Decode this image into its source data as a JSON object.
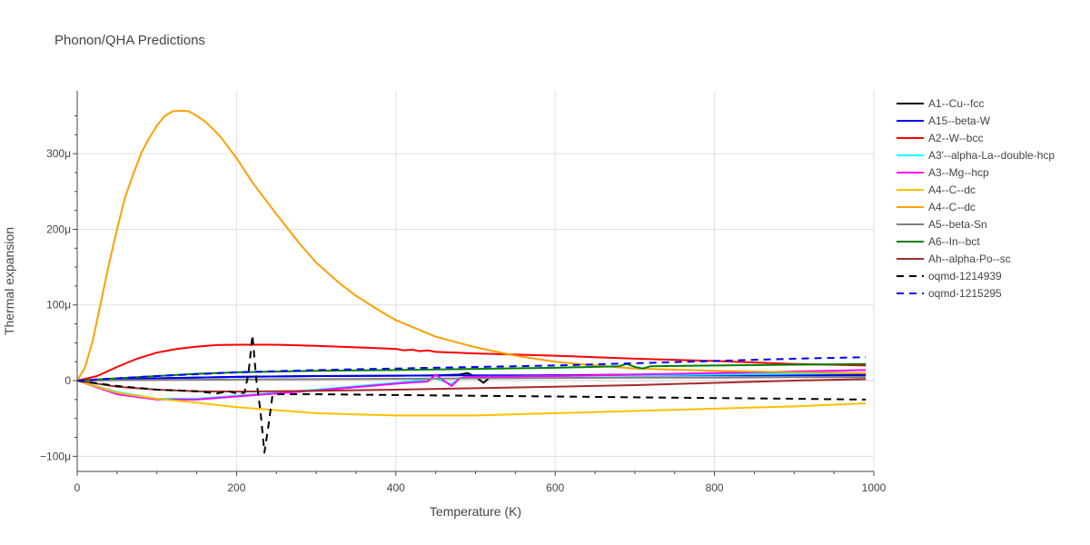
{
  "chart_data": {
    "type": "line",
    "title": "Phonon/QHA Predictions",
    "xlabel": "Temperature (K)",
    "ylabel": "Thermal expansion",
    "xlim": [
      0,
      1000
    ],
    "ylim": [
      -120,
      383
    ],
    "x_ticks": [
      0,
      200,
      400,
      600,
      800,
      1000
    ],
    "x_tick_labels": [
      "0",
      "200",
      "400",
      "600",
      "800",
      "1000"
    ],
    "y_ticks": [
      -100,
      0,
      100,
      200,
      300
    ],
    "y_tick_labels": [
      "−100μ",
      "0",
      "100μ",
      "200μ",
      "300μ"
    ],
    "y_unit": "1e-6 (μ)",
    "grid": true,
    "legend_position": "right",
    "series": [
      {
        "name": "A1--Cu--fcc",
        "color": "#000000",
        "dash": "solid",
        "x": [
          0,
          50,
          100,
          200,
          300,
          400,
          450,
          480,
          490,
          500,
          510,
          520,
          600,
          700,
          800,
          900,
          990
        ],
        "y": [
          0,
          1,
          3,
          5,
          6,
          6.5,
          7,
          8,
          10,
          5,
          -3,
          6,
          7,
          8,
          8.5,
          9,
          9
        ]
      },
      {
        "name": "A15--beta-W",
        "color": "#0000ff",
        "dash": "solid",
        "x": [
          0,
          50,
          100,
          200,
          300,
          400,
          500,
          600,
          700,
          800,
          900,
          990
        ],
        "y": [
          0,
          1.5,
          3,
          5,
          6,
          6.5,
          7,
          7,
          7,
          7,
          7,
          7
        ]
      },
      {
        "name": "A2--W--bcc",
        "color": "#ff0000",
        "dash": "solid",
        "x": [
          0,
          25,
          50,
          75,
          100,
          125,
          150,
          175,
          200,
          250,
          300,
          350,
          400,
          410,
          420,
          430,
          440,
          450,
          500,
          600,
          700,
          800,
          900,
          990
        ],
        "y": [
          0,
          6,
          18,
          29,
          37,
          42,
          45,
          47,
          47.5,
          47.5,
          46,
          44,
          42,
          40,
          41,
          39,
          40,
          38,
          36,
          33,
          29,
          26,
          22,
          20
        ]
      },
      {
        "name": "A3'--alpha-La--double-hcp",
        "color": "#00ffff",
        "dash": "solid",
        "x": [
          0,
          50,
          100,
          150,
          200,
          300,
          400,
          450,
          470,
          480,
          500,
          600,
          700,
          800,
          900,
          990
        ],
        "y": [
          0,
          -15,
          -24,
          -24,
          -20,
          -12,
          -3,
          3,
          -5,
          3,
          5,
          6,
          7,
          8,
          9,
          10
        ]
      },
      {
        "name": "A3--Mg--hcp",
        "color": "#ff00ff",
        "dash": "solid",
        "x": [
          0,
          50,
          100,
          150,
          200,
          300,
          400,
          440,
          450,
          460,
          470,
          480,
          490,
          500,
          600,
          700,
          800,
          900,
          990
        ],
        "y": [
          0,
          -18,
          -25,
          -25,
          -21,
          -13,
          -4,
          -1,
          8,
          0,
          -7,
          3,
          5,
          5,
          6,
          8,
          10,
          12,
          14
        ]
      },
      {
        "name": "A4--C--dc",
        "color": "#ffbf00",
        "dash": "solid",
        "x": [
          0,
          50,
          100,
          150,
          200,
          300,
          400,
          500,
          600,
          700,
          800,
          900,
          990
        ],
        "y": [
          0,
          -16,
          -24,
          -29,
          -35,
          -43,
          -46,
          -46,
          -43,
          -40,
          -37,
          -34,
          -30
        ]
      },
      {
        "name": "A4--C--dc",
        "color": "#ff9f00",
        "dash": "solid",
        "x": [
          0,
          10,
          20,
          30,
          40,
          50,
          60,
          70,
          80,
          90,
          100,
          110,
          120,
          130,
          140,
          150,
          160,
          170,
          180,
          200,
          220,
          250,
          280,
          300,
          330,
          350,
          380,
          400,
          450,
          500,
          550,
          600,
          650,
          700,
          800,
          900,
          990
        ],
        "y": [
          0,
          18,
          55,
          105,
          155,
          200,
          242,
          272,
          300,
          320,
          337,
          350,
          356,
          357,
          356,
          350,
          343,
          333,
          322,
          294,
          262,
          220,
          180,
          156,
          128,
          112,
          92,
          80,
          58,
          44,
          33,
          25,
          20,
          16,
          13,
          11,
          10
        ]
      },
      {
        "name": "A5--beta-Sn",
        "color": "#808080",
        "dash": "solid",
        "x": [
          0,
          100,
          200,
          300,
          400,
          500,
          600,
          700,
          800,
          900,
          990
        ],
        "y": [
          0,
          1,
          1.5,
          2,
          2.5,
          3,
          3.5,
          4,
          4,
          4.5,
          4.5
        ]
      },
      {
        "name": "A6--In--bct",
        "color": "#008000",
        "dash": "solid",
        "x": [
          0,
          50,
          100,
          150,
          200,
          300,
          400,
          500,
          600,
          680,
          690,
          700,
          710,
          720,
          800,
          900,
          990
        ],
        "y": [
          0,
          3,
          6,
          9,
          11,
          13,
          14,
          15.5,
          17,
          19,
          22,
          18,
          16,
          19,
          20,
          21,
          22
        ]
      },
      {
        "name": "Ah--alpha-Po--sc",
        "color": "#a52a2a",
        "dash": "solid",
        "x": [
          0,
          50,
          100,
          150,
          200,
          300,
          400,
          500,
          600,
          700,
          800,
          900,
          990
        ],
        "y": [
          0,
          -8,
          -12,
          -14,
          -14.5,
          -13.5,
          -12,
          -10,
          -8,
          -6,
          -3,
          0,
          2
        ]
      },
      {
        "name": "oqmd-1214939",
        "color": "#000000",
        "dash": "dash",
        "x": [
          0,
          50,
          100,
          150,
          175,
          190,
          200,
          210,
          215,
          220,
          225,
          230,
          235,
          240,
          245,
          250,
          300,
          400,
          500,
          600,
          700,
          800,
          900,
          990
        ],
        "y": [
          0,
          -7,
          -12,
          -14,
          -17,
          -14,
          -17,
          -16,
          10,
          60,
          0,
          -40,
          -95,
          -60,
          -20,
          -18,
          -18,
          -19,
          -20,
          -21,
          -22,
          -23,
          -24,
          -25
        ]
      },
      {
        "name": "oqmd-1215295",
        "color": "#0000ff",
        "dash": "dash",
        "x": [
          0,
          50,
          100,
          200,
          300,
          400,
          500,
          600,
          700,
          800,
          900,
          990
        ],
        "y": [
          0,
          3,
          6,
          11,
          14,
          16,
          18,
          20,
          23,
          26,
          29,
          31
        ]
      }
    ]
  }
}
